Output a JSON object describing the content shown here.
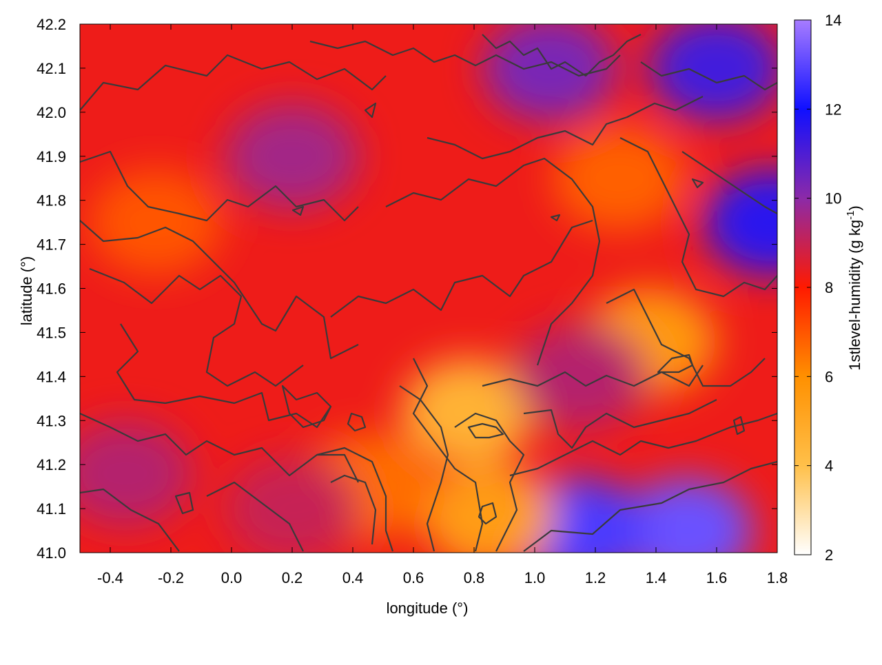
{
  "chart_data": {
    "type": "heatmap",
    "title": "",
    "xlabel": "longitude (°)",
    "ylabel": "latitude (°)",
    "xlim": [
      -0.5,
      1.8
    ],
    "ylim": [
      41.0,
      42.2
    ],
    "xticks": [
      "-0.4",
      "-0.2",
      "0.0",
      "0.2",
      "0.4",
      "0.6",
      "0.8",
      "1.0",
      "1.2",
      "1.4",
      "1.6",
      "1.8"
    ],
    "xtick_values": [
      -0.4,
      -0.2,
      0.0,
      0.2,
      0.4,
      0.6,
      0.8,
      1.0,
      1.2,
      1.4,
      1.6,
      1.8
    ],
    "yticks": [
      "41.0",
      "41.1",
      "41.2",
      "41.3",
      "41.4",
      "41.5",
      "41.6",
      "41.7",
      "41.8",
      "41.9",
      "42.0",
      "42.1",
      "42.2"
    ],
    "ytick_values": [
      41.0,
      41.1,
      41.2,
      41.3,
      41.4,
      41.5,
      41.6,
      41.7,
      41.8,
      41.9,
      42.0,
      42.1,
      42.2
    ],
    "colorbar": {
      "label": "1stlevel-humidity (g kg-1)",
      "label_main": "1stlevel-humidity (g kg",
      "label_sup": "-1",
      "label_end": ")",
      "range": [
        2,
        14
      ],
      "ticks": [
        "2",
        "4",
        "6",
        "8",
        "10",
        "12",
        "14"
      ],
      "tick_values": [
        2,
        4,
        6,
        8,
        10,
        12,
        14
      ],
      "colormap": [
        {
          "value": 2,
          "color": "#ffffff"
        },
        {
          "value": 4,
          "color": "#ffc04a"
        },
        {
          "value": 6,
          "color": "#ff9000"
        },
        {
          "value": 8,
          "color": "#ff1a00"
        },
        {
          "value": 10,
          "color": "#8c2aa8"
        },
        {
          "value": 12,
          "color": "#1010ff"
        },
        {
          "value": 14,
          "color": "#a77cff"
        }
      ]
    },
    "contour_color": "#3a3a3a",
    "field_regions": [
      {
        "name": "background",
        "lon": 0.65,
        "lat": 41.6,
        "humidity": 8.3
      },
      {
        "name": "north-moist-band",
        "lon": 0.2,
        "lat": 41.9,
        "humidity": 9.6
      },
      {
        "name": "northeast-moist",
        "lon": 1.05,
        "lat": 42.1,
        "humidity": 10.3
      },
      {
        "name": "far-northeast-moist",
        "lon": 1.6,
        "lat": 42.1,
        "humidity": 11.2
      },
      {
        "name": "east-edge-moist",
        "lon": 1.78,
        "lat": 41.75,
        "humidity": 11.6
      },
      {
        "name": "sea-southeast",
        "lon": 1.5,
        "lat": 41.05,
        "humidity": 13.2
      },
      {
        "name": "sea-south-coast",
        "lon": 1.15,
        "lat": 41.05,
        "humidity": 12.8
      },
      {
        "name": "dry-central-plume",
        "lon": 0.78,
        "lat": 41.32,
        "humidity": 4.6
      },
      {
        "name": "dry-south-tongue",
        "lon": 0.85,
        "lat": 41.08,
        "humidity": 5.5
      },
      {
        "name": "dry-east-patch",
        "lon": 1.38,
        "lat": 41.48,
        "humidity": 5.6
      },
      {
        "name": "dry-northeast",
        "lon": 1.28,
        "lat": 41.85,
        "humidity": 6.8
      },
      {
        "name": "dry-west-strip",
        "lon": -0.25,
        "lat": 41.75,
        "humidity": 7.0
      },
      {
        "name": "dry-southwest-spot",
        "lon": 0.45,
        "lat": 41.15,
        "humidity": 6.6
      },
      {
        "name": "southwest-moist",
        "lon": -0.35,
        "lat": 41.18,
        "humidity": 9.3
      },
      {
        "name": "south-moist-band",
        "lon": 0.2,
        "lat": 41.1,
        "humidity": 9.0
      },
      {
        "name": "east-central-moist",
        "lon": 1.15,
        "lat": 41.4,
        "humidity": 9.3
      }
    ]
  }
}
